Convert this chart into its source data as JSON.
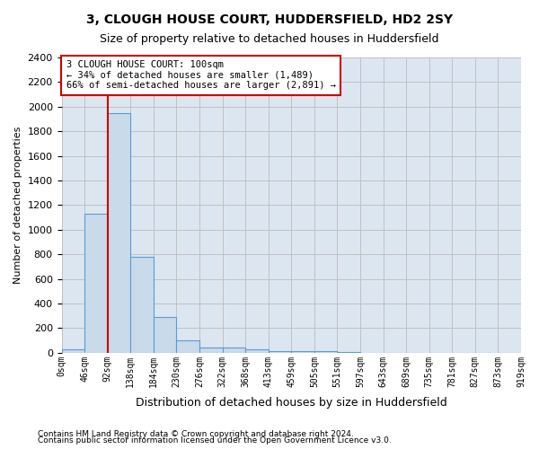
{
  "title": "3, CLOUGH HOUSE COURT, HUDDERSFIELD, HD2 2SY",
  "subtitle": "Size of property relative to detached houses in Huddersfield",
  "xlabel": "Distribution of detached houses by size in Huddersfield",
  "ylabel": "Number of detached properties",
  "footnote1": "Contains HM Land Registry data © Crown copyright and database right 2024.",
  "footnote2": "Contains public sector information licensed under the Open Government Licence v3.0.",
  "bin_labels": [
    "0sqm",
    "46sqm",
    "92sqm",
    "138sqm",
    "184sqm",
    "230sqm",
    "276sqm",
    "322sqm",
    "368sqm",
    "413sqm",
    "459sqm",
    "505sqm",
    "551sqm",
    "597sqm",
    "643sqm",
    "689sqm",
    "735sqm",
    "781sqm",
    "827sqm",
    "873sqm",
    "919sqm"
  ],
  "bar_values": [
    30,
    1130,
    1950,
    780,
    290,
    100,
    45,
    45,
    25,
    15,
    10,
    10,
    3,
    2,
    1,
    1,
    1,
    0,
    0,
    0
  ],
  "bar_color": "#c9daea",
  "bar_edge_color": "#5b9bd5",
  "grid_color": "#c0c0c0",
  "background_color": "#dce6f1",
  "property_line_x": 2,
  "property_line_color": "#cc0000",
  "annotation_text": "3 CLOUGH HOUSE COURT: 100sqm\n← 34% of detached houses are smaller (1,489)\n66% of semi-detached houses are larger (2,891) →",
  "annotation_box_color": "white",
  "annotation_box_edge_color": "#cc0000",
  "ylim": [
    0,
    2400
  ],
  "yticks": [
    0,
    200,
    400,
    600,
    800,
    1000,
    1200,
    1400,
    1600,
    1800,
    2000,
    2200,
    2400
  ]
}
